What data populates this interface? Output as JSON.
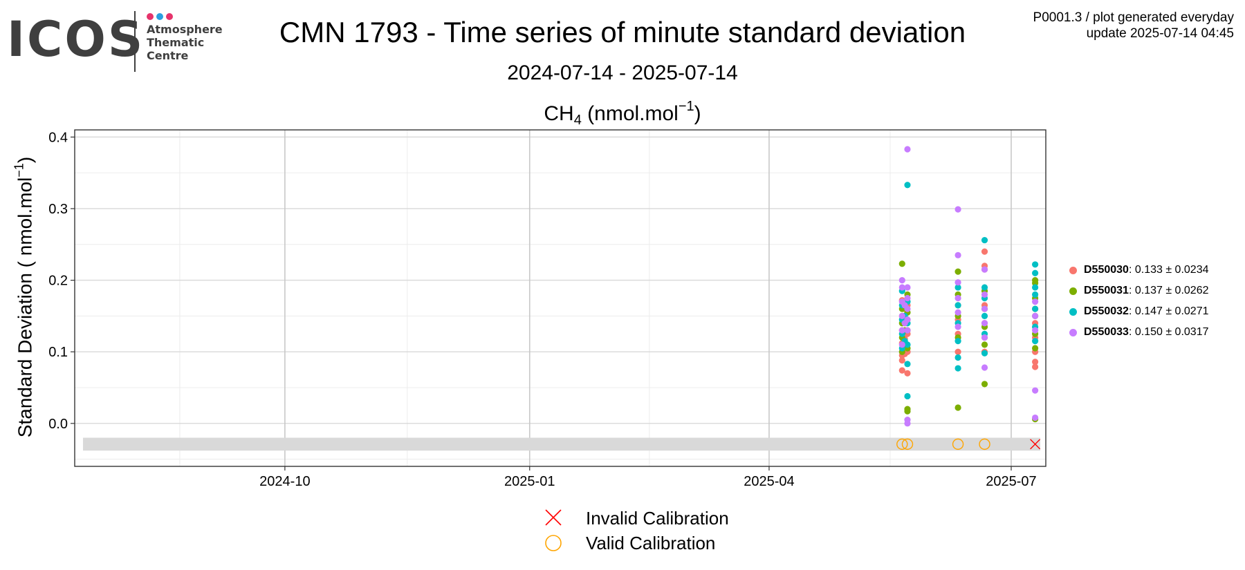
{
  "header": {
    "logo_text": "ICOS",
    "logo_sub_1": "Atmosphere",
    "logo_sub_2": "Thematic",
    "logo_sub_3": "Centre",
    "title": "CMN 1793 - Time series of minute standard deviation",
    "subtitle": "2024-07-14 - 2025-07-14",
    "species": "CH",
    "species_sub": "4",
    "unit_text": " (nmol.mol",
    "unit_exp": "−1",
    "unit_close": ")",
    "plot_id": "P0001.3 / plot generated everyday",
    "update": "update  2025-07-14 04:45"
  },
  "colors": {
    "logo_dot_1": "#e6336b",
    "logo_dot_2": "#2b9fe0",
    "logo_dot_3": "#e6336b",
    "D550030": "#F8766D",
    "D550031": "#7CAE00",
    "D550032": "#00BFC4",
    "D550033": "#C77CFF",
    "invalid": "#ff0000",
    "valid": "#ffa500"
  },
  "legend": {
    "items": [
      {
        "name": "D550030",
        "stats": ": 0.133 ± 0.0234",
        "color": "#F8766D"
      },
      {
        "name": "D550031",
        "stats": ": 0.137 ± 0.0262",
        "color": "#7CAE00"
      },
      {
        "name": "D550032",
        "stats": ": 0.147 ± 0.0271",
        "color": "#00BFC4"
      },
      {
        "name": "D550033",
        "stats": ": 0.150 ± 0.0317",
        "color": "#C77CFF"
      }
    ],
    "invalid_label": "Invalid Calibration",
    "valid_label": "Valid Calibration"
  },
  "chart_data": {
    "type": "scatter",
    "title": "CH4 (nmol.mol-1)",
    "xlabel": "",
    "ylabel_prefix": "Standard Deviation ( nmol.mol",
    "ylabel_exp": "−1",
    "ylabel_suffix": ")",
    "xlim": [
      "2024-07-14",
      "2025-07-14"
    ],
    "ylim": [
      -0.06,
      0.41
    ],
    "x_ticks": [
      "2024-10-01",
      "2025-01-01",
      "2025-04-01",
      "2025-07-01"
    ],
    "x_tick_labels": [
      "2024-10",
      "2025-01",
      "2025-04",
      "2025-07"
    ],
    "y_ticks": [
      0.0,
      0.1,
      0.2,
      0.3,
      0.4
    ],
    "y_tick_labels": [
      "0.0",
      "0.1",
      "0.2",
      "0.3",
      "0.4"
    ],
    "grid": true,
    "legend_position": "right",
    "series": [
      {
        "name": "D550030",
        "color": "#F8766D",
        "points": [
          [
            "2025-05-21",
            0.074
          ],
          [
            "2025-05-21",
            0.088
          ],
          [
            "2025-05-21",
            0.095
          ],
          [
            "2025-05-21",
            0.112
          ],
          [
            "2025-05-21",
            0.13
          ],
          [
            "2025-05-21",
            0.15
          ],
          [
            "2025-05-21",
            0.172
          ],
          [
            "2025-05-22",
            0.097
          ],
          [
            "2025-05-22",
            0.118
          ],
          [
            "2025-05-22",
            0.14
          ],
          [
            "2025-05-22",
            0.16
          ],
          [
            "2025-05-23",
            0.07
          ],
          [
            "2025-05-23",
            0.1
          ],
          [
            "2025-05-23",
            0.125
          ],
          [
            "2025-05-23",
            0.145
          ],
          [
            "2025-05-23",
            0.165
          ],
          [
            "2025-06-11",
            0.1
          ],
          [
            "2025-06-11",
            0.125
          ],
          [
            "2025-06-11",
            0.145
          ],
          [
            "2025-06-11",
            0.165
          ],
          [
            "2025-06-21",
            0.24
          ],
          [
            "2025-06-21",
            0.22
          ],
          [
            "2025-06-21",
            0.215
          ],
          [
            "2025-06-21",
            0.165
          ],
          [
            "2025-06-21",
            0.14
          ],
          [
            "2025-06-21",
            0.12
          ],
          [
            "2025-06-21",
            0.1
          ],
          [
            "2025-07-10",
            0.079
          ],
          [
            "2025-07-10",
            0.086
          ],
          [
            "2025-07-10",
            0.1
          ],
          [
            "2025-07-10",
            0.12
          ],
          [
            "2025-07-10",
            0.14
          ],
          [
            "2025-07-10",
            0.16
          ]
        ]
      },
      {
        "name": "D550031",
        "color": "#7CAE00",
        "points": [
          [
            "2025-05-21",
            0.223
          ],
          [
            "2025-05-21",
            0.1
          ],
          [
            "2025-05-21",
            0.12
          ],
          [
            "2025-05-21",
            0.14
          ],
          [
            "2025-05-21",
            0.16
          ],
          [
            "2025-05-22",
            0.11
          ],
          [
            "2025-05-22",
            0.13
          ],
          [
            "2025-05-23",
            0.02
          ],
          [
            "2025-05-23",
            0.017
          ],
          [
            "2025-05-23",
            0.105
          ],
          [
            "2025-05-23",
            0.13
          ],
          [
            "2025-05-23",
            0.155
          ],
          [
            "2025-05-23",
            0.18
          ],
          [
            "2025-06-11",
            0.212
          ],
          [
            "2025-06-11",
            0.022
          ],
          [
            "2025-06-11",
            0.12
          ],
          [
            "2025-06-11",
            0.15
          ],
          [
            "2025-06-11",
            0.18
          ],
          [
            "2025-06-21",
            0.055
          ],
          [
            "2025-06-21",
            0.11
          ],
          [
            "2025-06-21",
            0.135
          ],
          [
            "2025-06-21",
            0.16
          ],
          [
            "2025-06-21",
            0.185
          ],
          [
            "2025-07-10",
            0.2
          ],
          [
            "2025-07-10",
            0.196
          ],
          [
            "2025-07-10",
            0.006
          ],
          [
            "2025-07-10",
            0.105
          ],
          [
            "2025-07-10",
            0.125
          ],
          [
            "2025-07-10",
            0.15
          ],
          [
            "2025-07-10",
            0.175
          ]
        ]
      },
      {
        "name": "D550032",
        "color": "#00BFC4",
        "points": [
          [
            "2025-05-21",
            0.105
          ],
          [
            "2025-05-21",
            0.125
          ],
          [
            "2025-05-21",
            0.145
          ],
          [
            "2025-05-21",
            0.165
          ],
          [
            "2025-05-21",
            0.185
          ],
          [
            "2025-05-22",
            0.115
          ],
          [
            "2025-05-22",
            0.15
          ],
          [
            "2025-05-23",
            0.333
          ],
          [
            "2025-05-23",
            0.083
          ],
          [
            "2025-05-23",
            0.038
          ],
          [
            "2025-05-23",
            0.11
          ],
          [
            "2025-05-23",
            0.14
          ],
          [
            "2025-05-23",
            0.17
          ],
          [
            "2025-06-11",
            0.077
          ],
          [
            "2025-06-11",
            0.092
          ],
          [
            "2025-06-11",
            0.115
          ],
          [
            "2025-06-11",
            0.14
          ],
          [
            "2025-06-11",
            0.165
          ],
          [
            "2025-06-11",
            0.19
          ],
          [
            "2025-06-21",
            0.256
          ],
          [
            "2025-06-21",
            0.098
          ],
          [
            "2025-06-21",
            0.125
          ],
          [
            "2025-06-21",
            0.15
          ],
          [
            "2025-06-21",
            0.175
          ],
          [
            "2025-06-21",
            0.19
          ],
          [
            "2025-07-10",
            0.222
          ],
          [
            "2025-07-10",
            0.21
          ],
          [
            "2025-07-10",
            0.19
          ],
          [
            "2025-07-10",
            0.115
          ],
          [
            "2025-07-10",
            0.135
          ],
          [
            "2025-07-10",
            0.16
          ],
          [
            "2025-07-10",
            0.18
          ]
        ]
      },
      {
        "name": "D550033",
        "color": "#C77CFF",
        "points": [
          [
            "2025-05-21",
            0.2
          ],
          [
            "2025-05-21",
            0.19
          ],
          [
            "2025-05-21",
            0.17
          ],
          [
            "2025-05-21",
            0.15
          ],
          [
            "2025-05-21",
            0.13
          ],
          [
            "2025-05-21",
            0.11
          ],
          [
            "2025-05-22",
            0.165
          ],
          [
            "2025-05-22",
            0.14
          ],
          [
            "2025-05-23",
            0.383
          ],
          [
            "2025-05-23",
            0.19
          ],
          [
            "2025-05-23",
            0.175
          ],
          [
            "2025-05-23",
            0.16
          ],
          [
            "2025-05-23",
            0.145
          ],
          [
            "2025-05-23",
            0.13
          ],
          [
            "2025-05-23",
            0.005
          ],
          [
            "2025-05-23",
            0.0
          ],
          [
            "2025-06-11",
            0.299
          ],
          [
            "2025-06-11",
            0.235
          ],
          [
            "2025-06-11",
            0.197
          ],
          [
            "2025-06-11",
            0.175
          ],
          [
            "2025-06-11",
            0.155
          ],
          [
            "2025-06-11",
            0.135
          ],
          [
            "2025-06-21",
            0.215
          ],
          [
            "2025-06-21",
            0.18
          ],
          [
            "2025-06-21",
            0.16
          ],
          [
            "2025-06-21",
            0.14
          ],
          [
            "2025-06-21",
            0.12
          ],
          [
            "2025-06-21",
            0.078
          ],
          [
            "2025-07-10",
            0.046
          ],
          [
            "2025-07-10",
            0.008
          ],
          [
            "2025-07-10",
            0.17
          ],
          [
            "2025-07-10",
            0.15
          ],
          [
            "2025-07-10",
            0.13
          ]
        ]
      }
    ],
    "calibrations": [
      {
        "date": "2025-05-21",
        "status": "valid"
      },
      {
        "date": "2025-05-23",
        "status": "valid"
      },
      {
        "date": "2025-06-11",
        "status": "valid"
      },
      {
        "date": "2025-06-21",
        "status": "valid"
      },
      {
        "date": "2025-07-10",
        "status": "invalid"
      }
    ]
  }
}
